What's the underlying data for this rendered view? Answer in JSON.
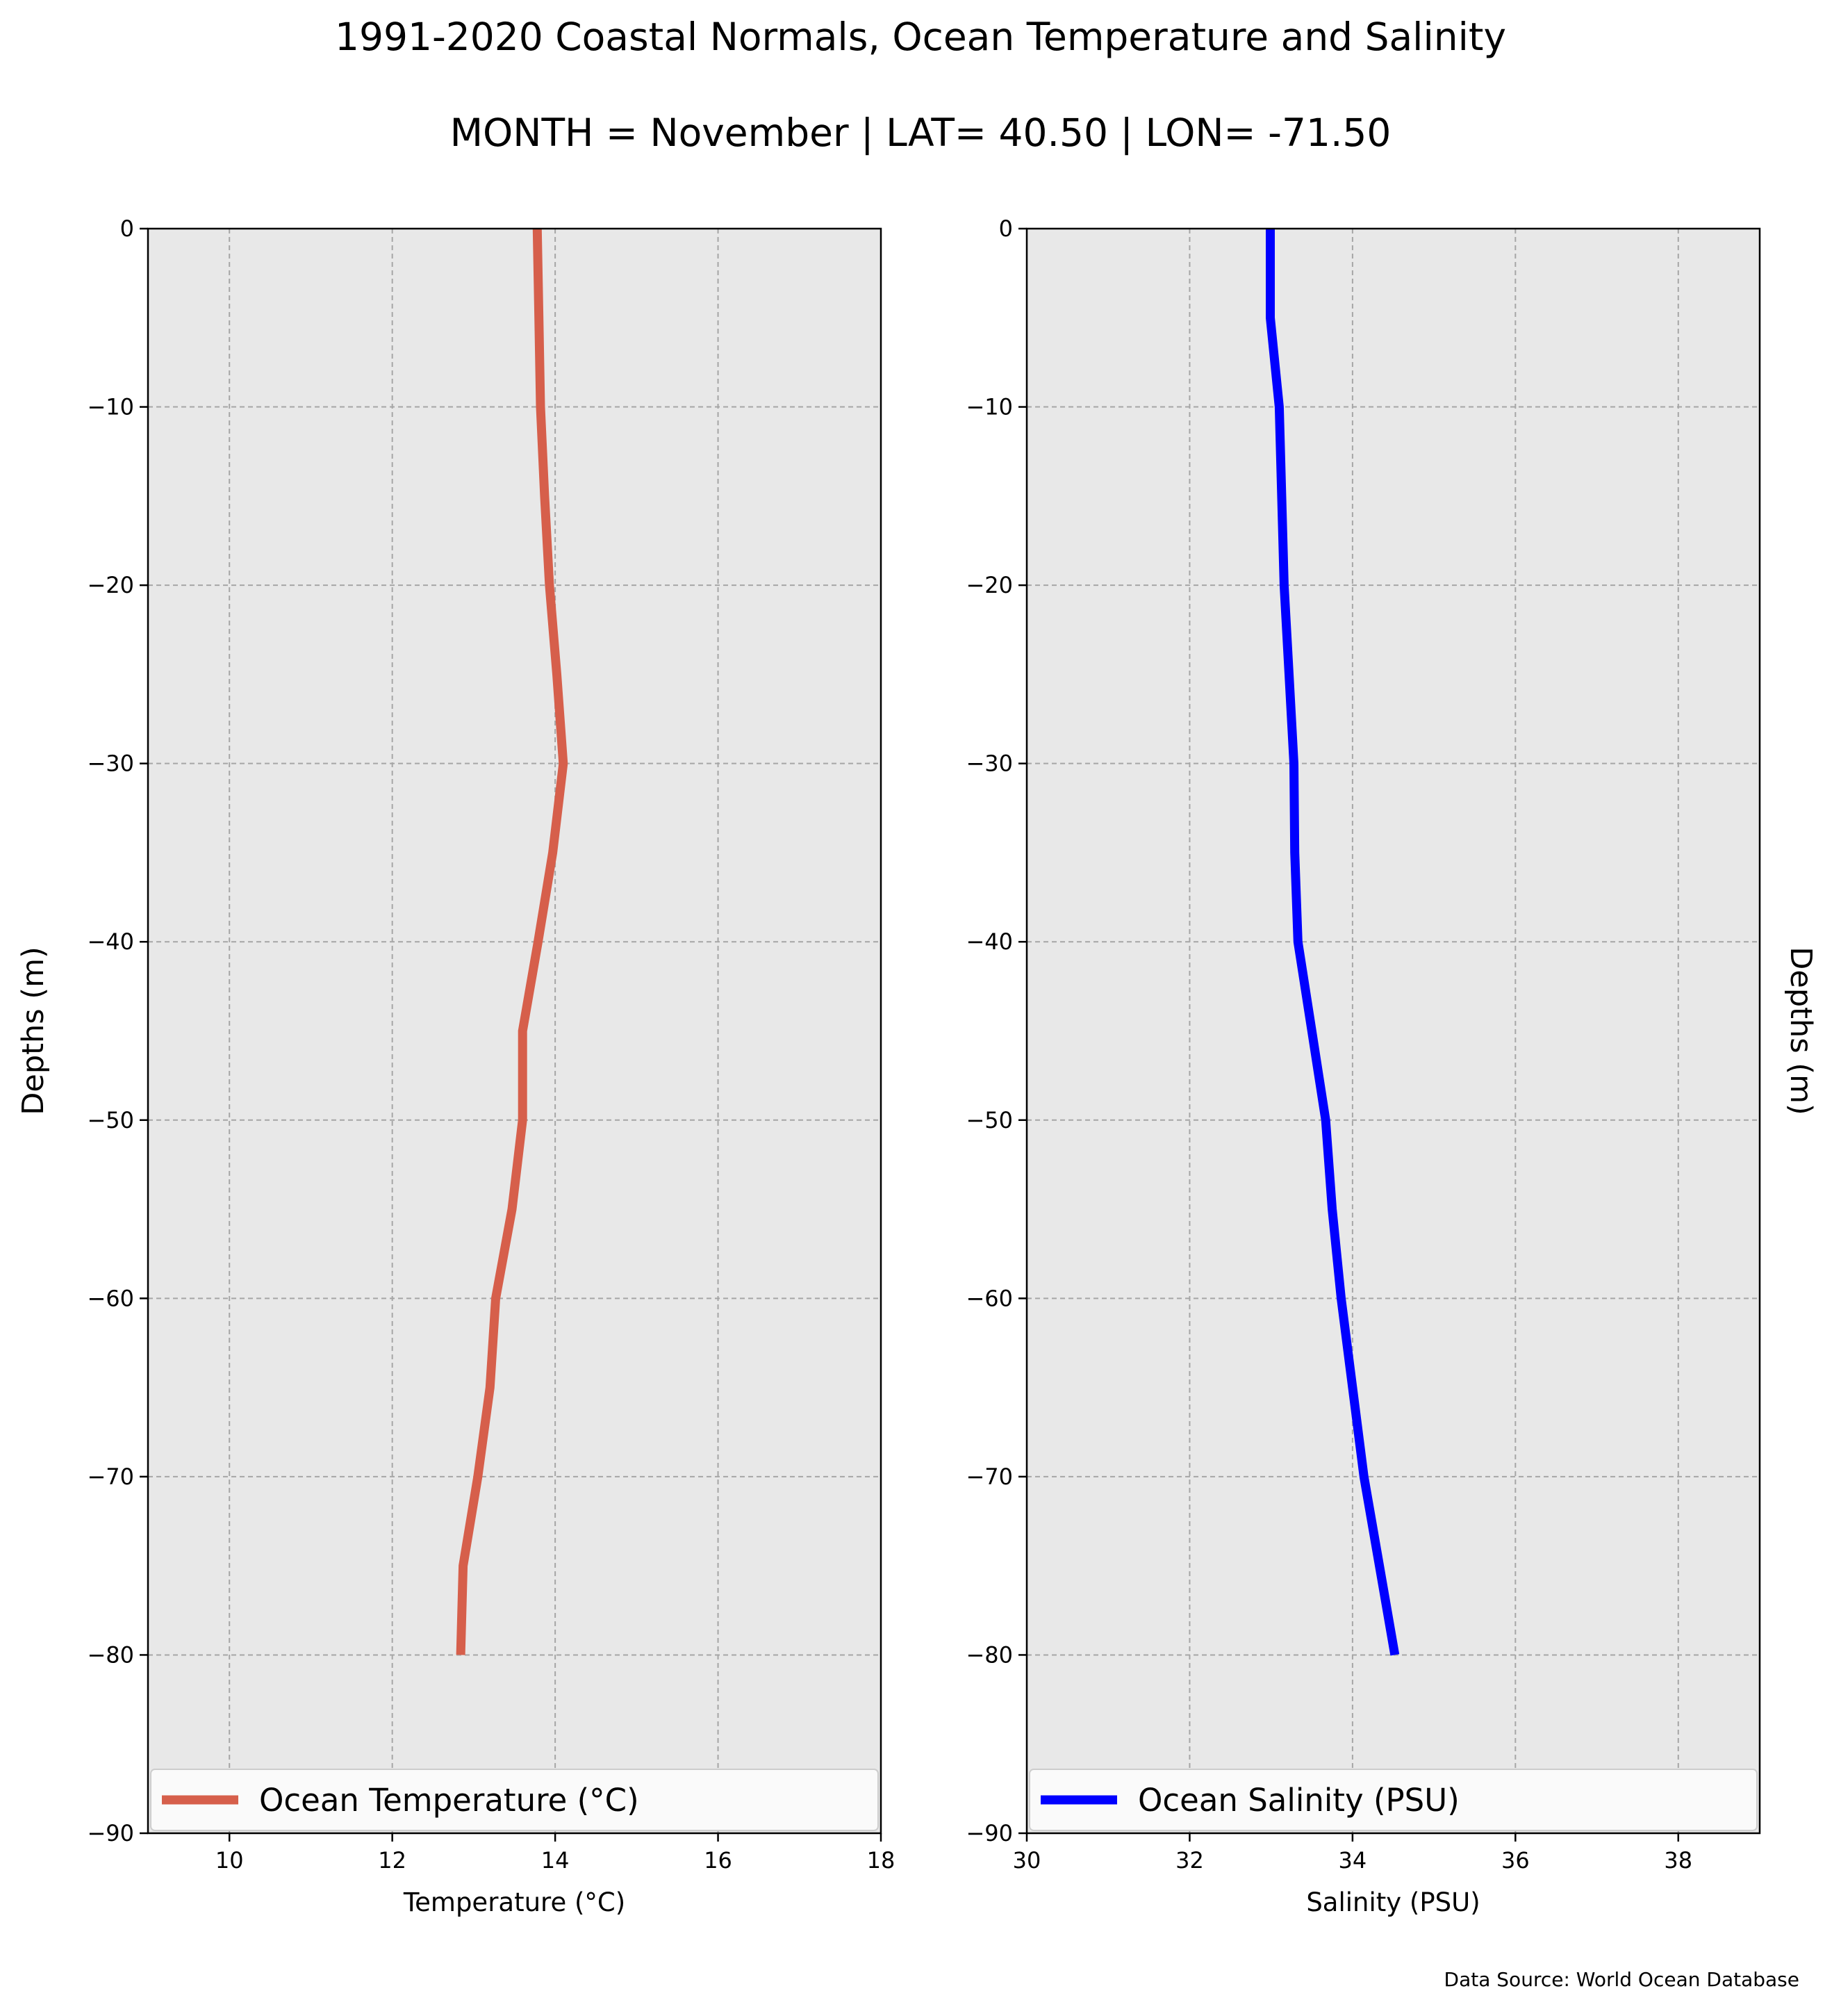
{
  "figure": {
    "title": "1991-2020 Coastal Normals, Ocean Temperature and Salinity",
    "subtitle": "MONTH = November | LAT= 40.50 | LON= -71.50",
    "source": "Data Source: World Ocean Database",
    "background": "#e8e8e8"
  },
  "chart_data": [
    {
      "type": "line",
      "title": "",
      "xlabel": "Temperature (°C)",
      "ylabel": "Depths (m)",
      "xlim": [
        9,
        18
      ],
      "ylim": [
        -90,
        0
      ],
      "xticks": [
        10,
        12,
        14,
        16,
        18
      ],
      "xtick_labels": [
        "10",
        "12",
        "14",
        "16",
        "18"
      ],
      "yticks": [
        0,
        -10,
        -20,
        -30,
        -40,
        -50,
        -60,
        -70,
        -80,
        -90
      ],
      "ytick_labels": [
        "0",
        "−10",
        "−20",
        "−30",
        "−40",
        "−50",
        "−60",
        "−70",
        "−80",
        "−90"
      ],
      "grid": true,
      "legend_position": "bottom",
      "ylabel_side": "left",
      "series": [
        {
          "name": "Ocean Temperature (°C)",
          "color": "#d65f4b",
          "x": [
            13.78,
            13.8,
            13.82,
            13.87,
            13.93,
            14.02,
            14.1,
            13.97,
            13.79,
            13.6,
            13.6,
            13.47,
            13.27,
            13.2,
            13.05,
            12.87,
            12.84
          ],
          "y": [
            0,
            -5,
            -10,
            -15,
            -20,
            -25,
            -30,
            -35,
            -40,
            -45,
            -50,
            -55,
            -60,
            -65,
            -70,
            -75,
            -80
          ]
        }
      ]
    },
    {
      "type": "line",
      "title": "",
      "xlabel": "Salinity (PSU)",
      "ylabel": "Depths (m)",
      "xlim": [
        30,
        39
      ],
      "ylim": [
        -90,
        0
      ],
      "xticks": [
        30,
        32,
        34,
        36,
        38
      ],
      "xtick_labels": [
        "30",
        "32",
        "34",
        "36",
        "38"
      ],
      "yticks": [
        0,
        -10,
        -20,
        -30,
        -40,
        -50,
        -60,
        -70,
        -80,
        -90
      ],
      "ytick_labels": [
        "0",
        "−10",
        "−20",
        "−30",
        "−40",
        "−50",
        "−60",
        "−70",
        "−80",
        "−90"
      ],
      "grid": true,
      "legend_position": "bottom",
      "ylabel_side": "right",
      "series": [
        {
          "name": "Ocean Salinity (PSU)",
          "color": "#0000ff",
          "x": [
            32.99,
            32.99,
            33.1,
            33.13,
            33.16,
            33.22,
            33.28,
            33.29,
            33.33,
            33.5,
            33.67,
            33.75,
            33.86,
            34.0,
            34.14,
            34.33,
            34.52
          ],
          "y": [
            0,
            -5,
            -10,
            -15,
            -20,
            -25,
            -30,
            -35,
            -40,
            -45,
            -50,
            -55,
            -60,
            -65,
            -70,
            -75,
            -80
          ]
        }
      ]
    }
  ]
}
